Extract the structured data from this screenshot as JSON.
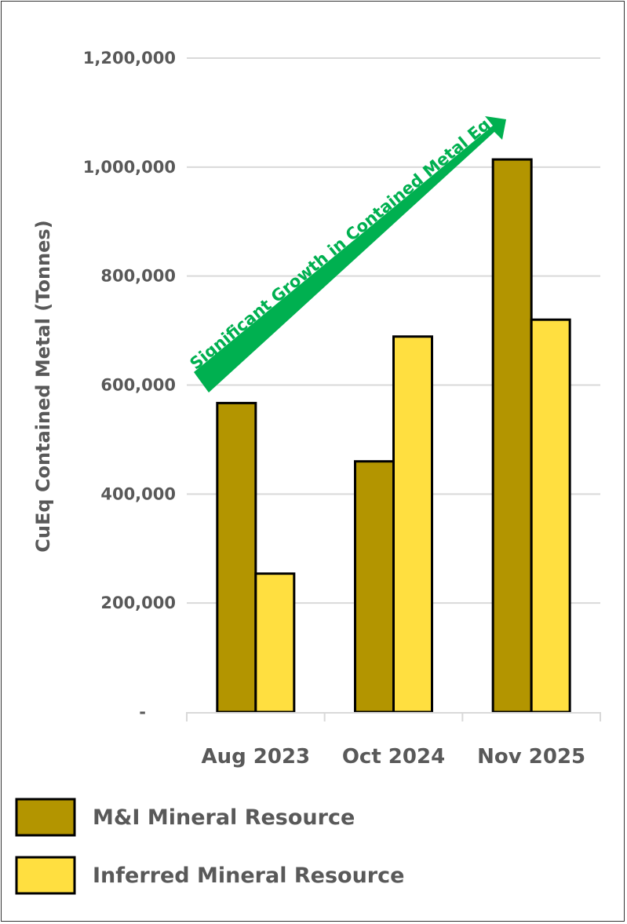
{
  "chart_data": {
    "type": "bar",
    "title": "",
    "xlabel": "",
    "ylabel": "CuEq Contained Metal (Tonnes)",
    "categories": [
      "Aug 2023",
      "Oct 2024",
      "Nov 2025"
    ],
    "series": [
      {
        "name": "M&I Mineral Resource",
        "color": "#B39500",
        "values": [
          567000,
          460000,
          1014000
        ]
      },
      {
        "name": "Inferred Mineral Resource",
        "color": "#FFDF40",
        "values": [
          254000,
          689000,
          720000
        ]
      }
    ],
    "ylim": [
      0,
      1200000
    ],
    "yticks": [
      0,
      200000,
      400000,
      600000,
      800000,
      1000000,
      1200000
    ],
    "ytick_labels": [
      "-",
      "200,000",
      "400,000",
      "600,000",
      "800,000",
      "1,000,000",
      "1,200,000"
    ],
    "grid": true,
    "legend_placement": "bottom",
    "annotation": {
      "text": "Significant Growth in Contained Metal Eq.",
      "color": "#00B050",
      "icon": "arrow-up-right-icon"
    }
  }
}
